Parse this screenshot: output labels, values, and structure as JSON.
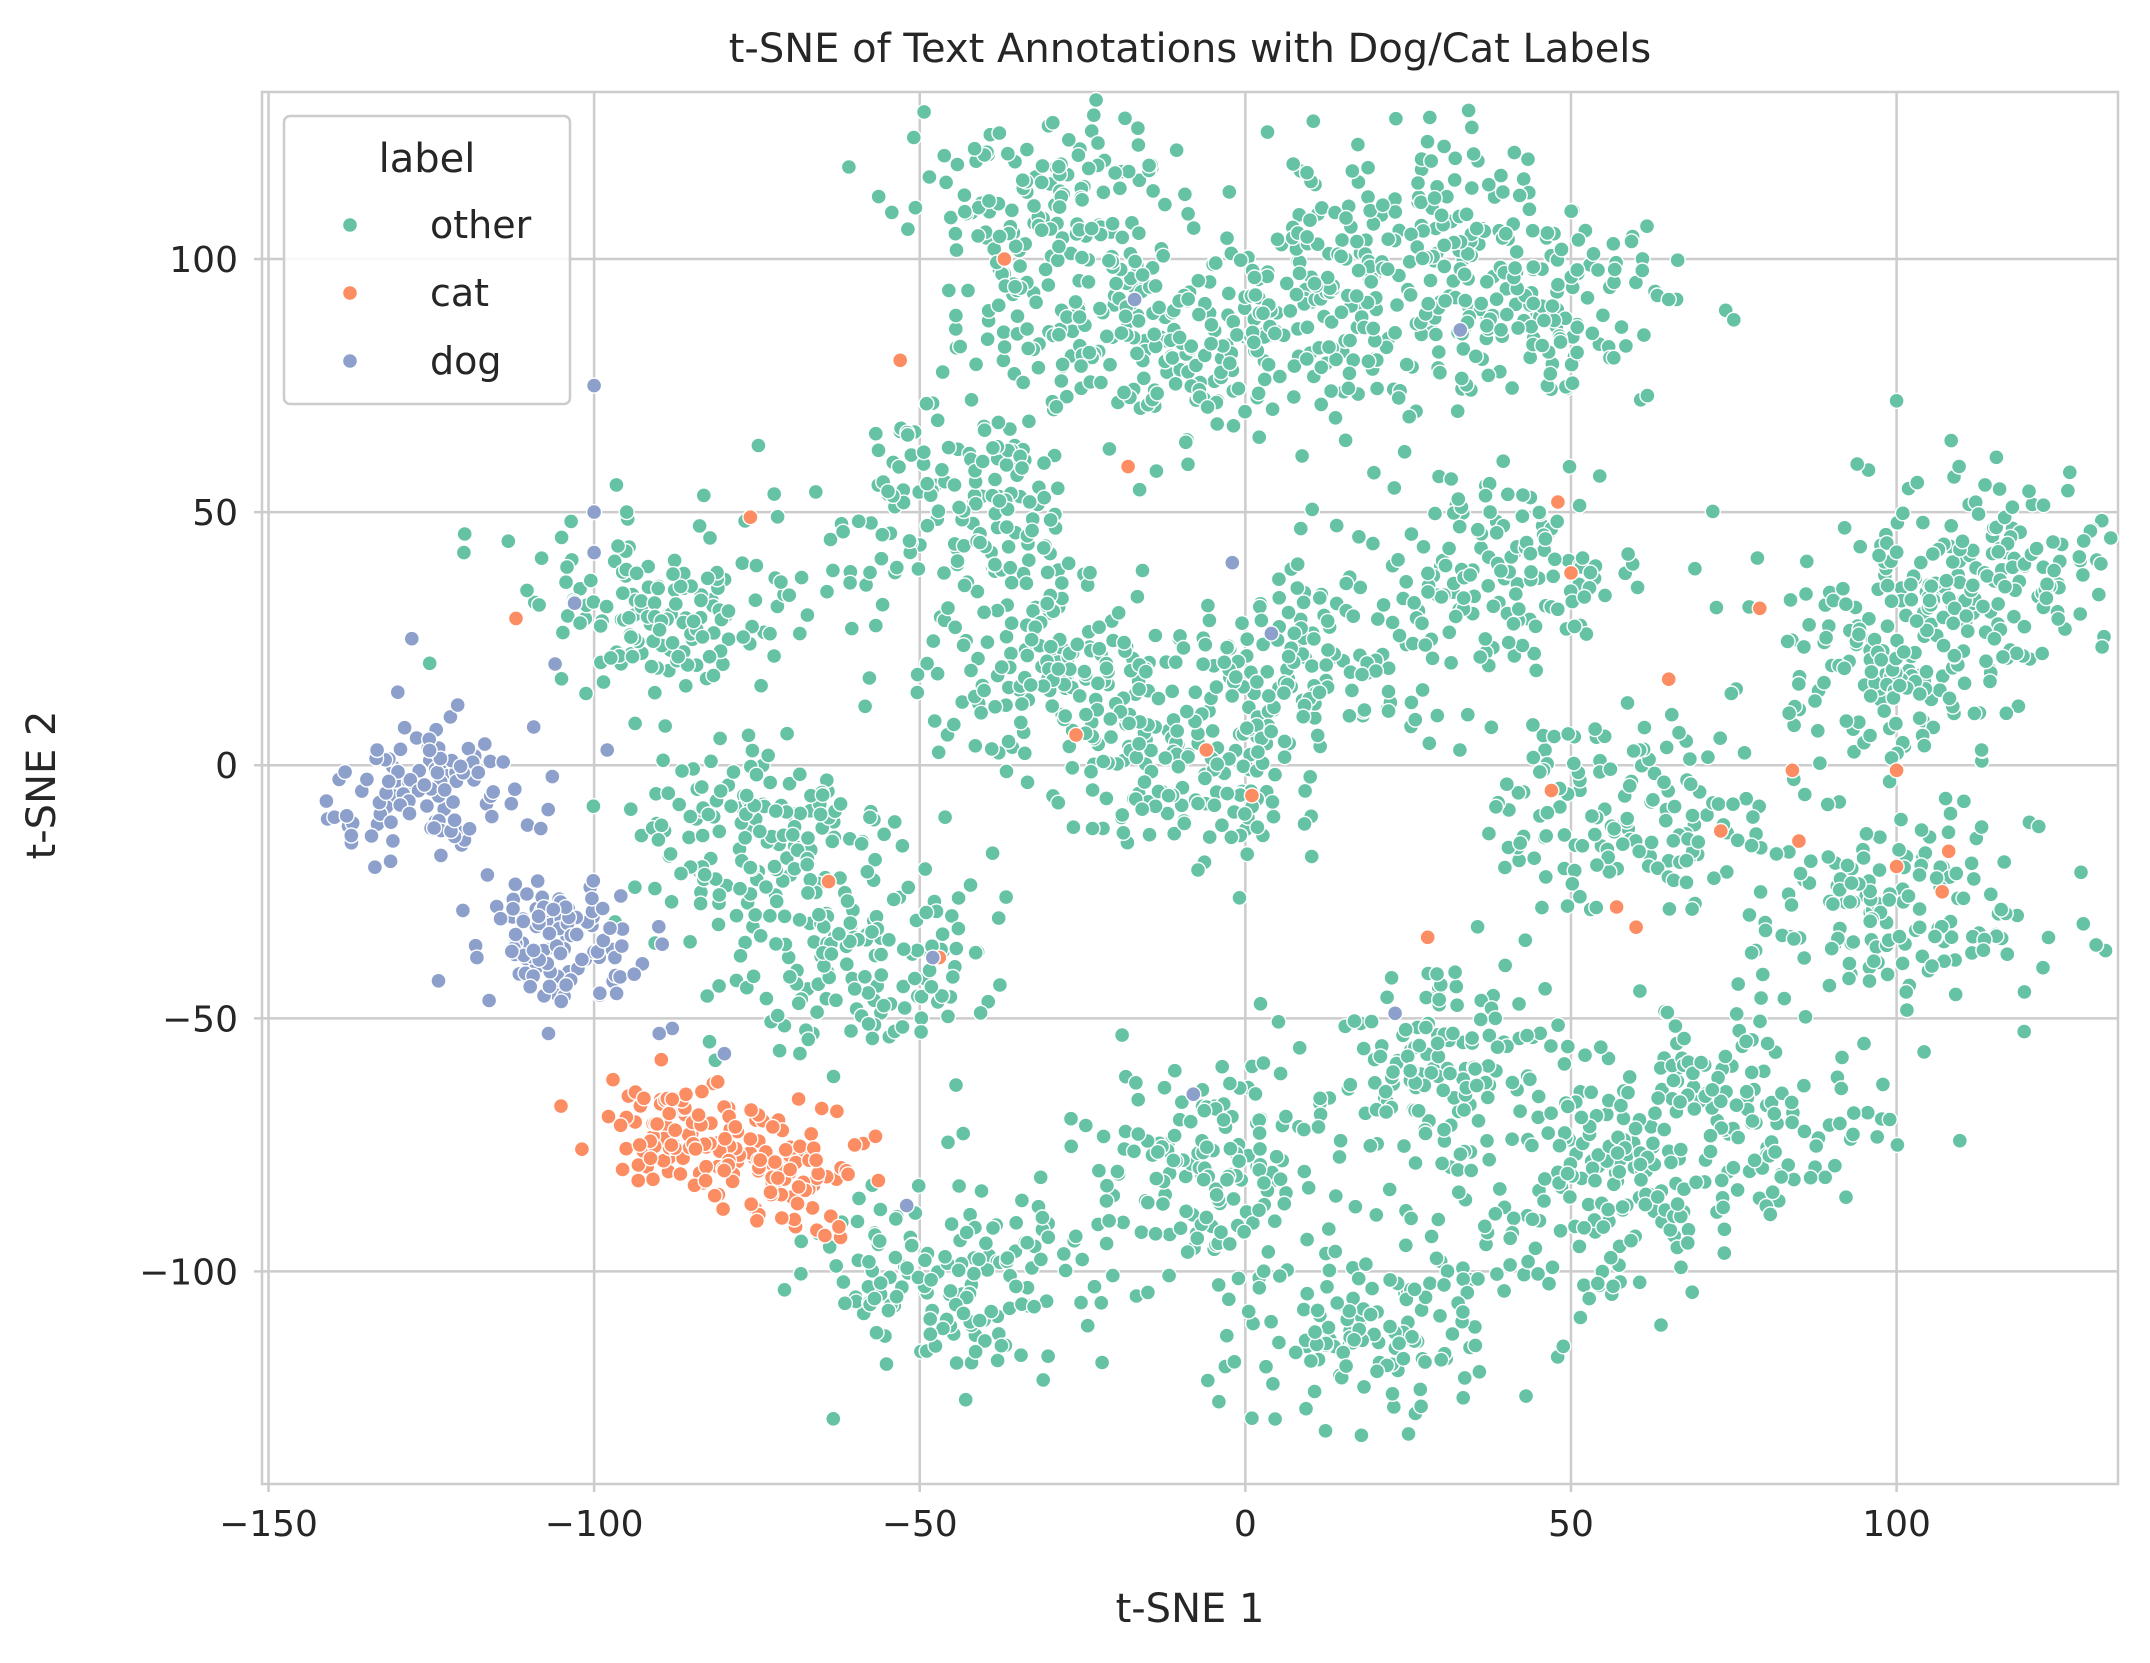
{
  "chart_data": {
    "type": "scatter",
    "title": "t-SNE of Text Annotations with Dog/Cat Labels",
    "xlabel": "t-SNE 1",
    "ylabel": "t-SNE 2",
    "xlim": [
      -151,
      134
    ],
    "ylim": [
      -142,
      133
    ],
    "xticks": [
      -150,
      -100,
      -50,
      0,
      50,
      100
    ],
    "yticks": [
      -100,
      -50,
      0,
      50,
      100
    ],
    "grid": true,
    "legend": {
      "title": "label",
      "position": "top-left",
      "entries": [
        {
          "name": "other",
          "color": "#66c2a5"
        },
        {
          "name": "cat",
          "color": "#fc8d62"
        },
        {
          "name": "dog",
          "color": "#8da0cb"
        }
      ]
    },
    "series": [
      {
        "name": "other",
        "color": "#66c2a5",
        "cluster_centers": [
          {
            "x": -10,
            "y": 0
          },
          {
            "x": 10,
            "y": 20
          },
          {
            "x": -30,
            "y": 20
          },
          {
            "x": 40,
            "y": 40
          },
          {
            "x": 60,
            "y": -10
          },
          {
            "x": 100,
            "y": 20
          },
          {
            "x": 100,
            "y": -30
          },
          {
            "x": -20,
            "y": 85
          },
          {
            "x": 45,
            "y": 90
          },
          {
            "x": -5,
            "y": -80
          },
          {
            "x": 55,
            "y": -85
          },
          {
            "x": -90,
            "y": 30
          },
          {
            "x": -75,
            "y": -15
          },
          {
            "x": -45,
            "y": 50
          },
          {
            "x": 30,
            "y": -60
          },
          {
            "x": 75,
            "y": -70
          },
          {
            "x": 115,
            "y": 40
          },
          {
            "x": 20,
            "y": -110
          },
          {
            "x": -45,
            "y": -100
          },
          {
            "x": -60,
            "y": -40
          },
          {
            "x": 5,
            "y": 85
          },
          {
            "x": 25,
            "y": 105
          },
          {
            "x": -30,
            "y": 110
          }
        ],
        "samples": [
          {
            "x": -20,
            "y": 117
          },
          {
            "x": 40,
            "y": 105
          },
          {
            "x": -105,
            "y": 45
          },
          {
            "x": -95,
            "y": 50
          },
          {
            "x": -120,
            "y": 42
          },
          {
            "x": 123,
            "y": 33
          },
          {
            "x": 100,
            "y": 72
          },
          {
            "x": 75,
            "y": 88
          },
          {
            "x": 1,
            "y": -129
          },
          {
            "x": -22,
            "y": -118
          },
          {
            "x": 95,
            "y": -55
          },
          {
            "x": 65,
            "y": 92
          }
        ]
      },
      {
        "name": "cat",
        "color": "#fc8d62",
        "cluster_centers": [
          {
            "x": -70,
            "y": -80
          },
          {
            "x": -88,
            "y": -72
          }
        ],
        "samples": [
          {
            "x": -75,
            "y": -90
          },
          {
            "x": -60,
            "y": -75
          },
          {
            "x": -88,
            "y": -66
          },
          {
            "x": -93,
            "y": -75
          },
          {
            "x": 48,
            "y": 52
          },
          {
            "x": 50,
            "y": 38
          },
          {
            "x": 47,
            "y": -5
          },
          {
            "x": 60,
            "y": -32
          },
          {
            "x": 57,
            "y": -28
          },
          {
            "x": 85,
            "y": -15
          },
          {
            "x": 100,
            "y": -20
          },
          {
            "x": 107,
            "y": -25
          },
          {
            "x": 73,
            "y": -13
          },
          {
            "x": 65,
            "y": 17
          },
          {
            "x": 79,
            "y": 31
          },
          {
            "x": 84,
            "y": -1
          },
          {
            "x": 100,
            "y": -1
          },
          {
            "x": 1,
            "y": -6
          },
          {
            "x": -6,
            "y": 3
          },
          {
            "x": -47,
            "y": -38
          },
          {
            "x": -64,
            "y": -23
          },
          {
            "x": -37,
            "y": 100
          },
          {
            "x": -53,
            "y": 80
          },
          {
            "x": -26,
            "y": 6
          },
          {
            "x": -76,
            "y": 49
          },
          {
            "x": -112,
            "y": 29
          },
          {
            "x": 28,
            "y": -34
          },
          {
            "x": -18,
            "y": 59
          },
          {
            "x": 108,
            "y": -17
          }
        ]
      },
      {
        "name": "dog",
        "color": "#8da0cb",
        "cluster_centers": [
          {
            "x": -125,
            "y": -3
          },
          {
            "x": -105,
            "y": -35
          }
        ],
        "samples": [
          {
            "x": -100,
            "y": 75
          },
          {
            "x": -128,
            "y": 25
          },
          {
            "x": -138,
            "y": -10
          },
          {
            "x": -107,
            "y": -53
          },
          {
            "x": -118,
            "y": -38
          },
          {
            "x": -98,
            "y": 3
          },
          {
            "x": -106,
            "y": 20
          },
          {
            "x": -103,
            "y": 32
          },
          {
            "x": -100,
            "y": 50
          },
          {
            "x": -100,
            "y": 42
          },
          {
            "x": -88,
            "y": -52
          },
          {
            "x": -80,
            "y": -57
          },
          {
            "x": -52,
            "y": -87
          },
          {
            "x": 33,
            "y": 86
          },
          {
            "x": -17,
            "y": 92
          },
          {
            "x": -2,
            "y": 40
          },
          {
            "x": -8,
            "y": -65
          },
          {
            "x": 23,
            "y": -49
          },
          {
            "x": 4,
            "y": 26
          },
          {
            "x": -48,
            "y": -38
          },
          {
            "x": -90,
            "y": -53
          }
        ]
      }
    ]
  }
}
